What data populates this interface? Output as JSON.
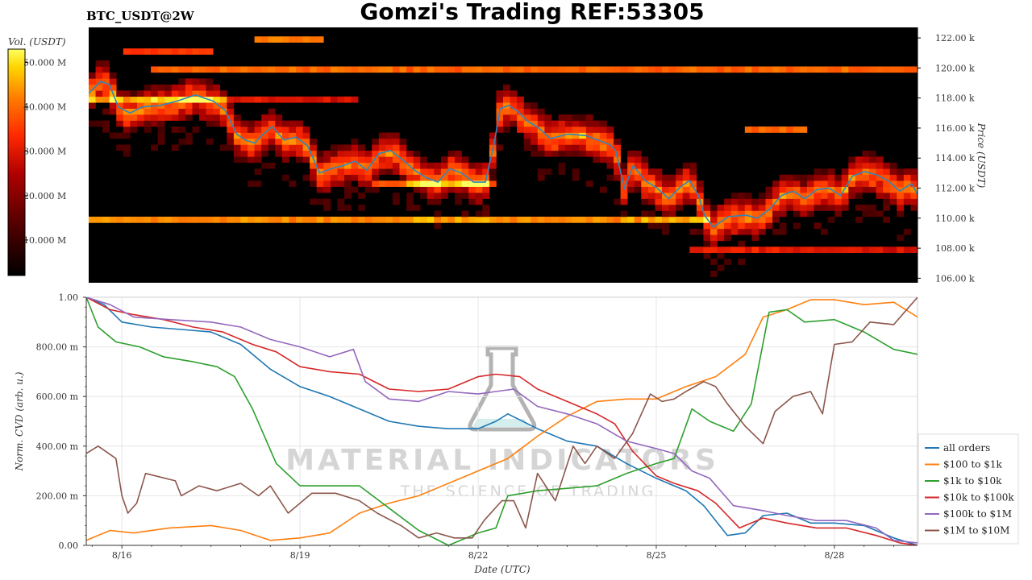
{
  "header": {
    "title": "Gomzi's Trading REF:53305",
    "subtitle": "BTC_USDT@2W"
  },
  "watermark": {
    "main": "MATERIAL INDICATORS",
    "sub": "THE SCIENCE OF TRADING"
  },
  "chart_data": [
    {
      "type": "heatmap",
      "colorbar": {
        "label": "Vol. (USDT)",
        "ticks": [
          "10.000 M",
          "20.000 M",
          "30.000 M",
          "40.000 M",
          "50.000 M"
        ],
        "tick_values": [
          10,
          20,
          30,
          40,
          50
        ],
        "range": [
          2,
          53
        ],
        "colorscale": [
          "#000000",
          "#5c0000",
          "#b00000",
          "#ff2a00",
          "#ff7a00",
          "#ffd400",
          "#ffff60"
        ]
      },
      "ylabel": "Price (USDT)",
      "ylim": [
        105700,
        122700
      ],
      "y_ticks": [
        "106.00 k",
        "108.00 k",
        "110.00 k",
        "112.00 k",
        "114.00 k",
        "116.00 k",
        "118.00 k",
        "120.00 k",
        "122.00 k"
      ],
      "y_tick_values": [
        106000,
        108000,
        110000,
        112000,
        114000,
        116000,
        118000,
        120000,
        122000
      ],
      "xlim_days": [
        15.4,
        29.4
      ],
      "price_line_color": "#2e86c1",
      "price_series": {
        "x": [
          15.4,
          15.6,
          15.75,
          15.9,
          16.1,
          16.3,
          16.6,
          16.9,
          17.2,
          17.5,
          17.7,
          17.9,
          18.05,
          18.2,
          18.35,
          18.5,
          18.7,
          18.9,
          19.1,
          19.3,
          19.5,
          19.7,
          19.9,
          20.1,
          20.3,
          20.5,
          20.7,
          20.9,
          21.1,
          21.3,
          21.5,
          21.7,
          21.9,
          22.1,
          22.25,
          22.35,
          22.5,
          22.65,
          22.8,
          23.0,
          23.2,
          23.5,
          23.8,
          24.0,
          24.2,
          24.3,
          24.45,
          24.6,
          24.8,
          25.0,
          25.2,
          25.4,
          25.55,
          25.7,
          25.8,
          25.95,
          26.2,
          26.5,
          26.7,
          26.9,
          27.1,
          27.3,
          27.5,
          27.7,
          27.9,
          28.1,
          28.3,
          28.5,
          28.7,
          28.9,
          29.1,
          29.3,
          29.4
        ],
        "y": [
          118300,
          119100,
          118900,
          117400,
          117000,
          117400,
          117500,
          117800,
          118200,
          117800,
          117200,
          115600,
          115200,
          115000,
          115600,
          116100,
          115200,
          115400,
          114800,
          113000,
          113300,
          113500,
          113800,
          113200,
          114300,
          114500,
          113900,
          113200,
          112700,
          112400,
          113300,
          113000,
          112400,
          112400,
          115000,
          117300,
          117500,
          117100,
          116500,
          116000,
          115300,
          115600,
          115500,
          115200,
          114900,
          114500,
          112000,
          113500,
          112500,
          112000,
          111300,
          112100,
          112500,
          111500,
          110200,
          109400,
          110100,
          110200,
          110000,
          110600,
          111500,
          111800,
          111300,
          111900,
          112000,
          111500,
          112800,
          113100,
          112900,
          112500,
          111800,
          112300,
          111600
        ]
      }
    },
    {
      "type": "line",
      "xlabel": "Date (UTC)",
      "ylabel": "Norm. CVD (arb. u.)",
      "ylim": [
        0,
        1
      ],
      "xlim_days": [
        15.4,
        29.4
      ],
      "x_ticks": [
        "8/16",
        "8/19",
        "8/22",
        "8/25",
        "8/28"
      ],
      "x_tick_values": [
        16,
        19,
        22,
        25,
        28
      ],
      "y_ticks": [
        "0.00",
        "200.00 m",
        "400.00 m",
        "600.00 m",
        "800.00 m",
        "1.00"
      ],
      "y_tick_values": [
        0,
        0.2,
        0.4,
        0.6,
        0.8,
        1.0
      ],
      "grid": true,
      "legend_position": "right",
      "series": [
        {
          "name": "all orders",
          "color": "#1f77b4",
          "x": [
            15.4,
            15.7,
            16.0,
            16.5,
            17.0,
            17.5,
            18.0,
            18.5,
            19.0,
            19.5,
            20.0,
            20.5,
            21.0,
            21.5,
            22.0,
            22.3,
            22.5,
            23.0,
            23.5,
            24.0,
            24.5,
            25.0,
            25.5,
            25.8,
            26.2,
            26.5,
            26.8,
            27.2,
            27.6,
            28.0,
            28.5,
            29.0,
            29.4
          ],
          "y": [
            1.0,
            0.97,
            0.9,
            0.88,
            0.87,
            0.86,
            0.81,
            0.71,
            0.64,
            0.6,
            0.55,
            0.5,
            0.48,
            0.47,
            0.47,
            0.5,
            0.53,
            0.47,
            0.42,
            0.4,
            0.33,
            0.27,
            0.22,
            0.16,
            0.04,
            0.05,
            0.12,
            0.13,
            0.09,
            0.09,
            0.08,
            0.03,
            0.0
          ]
        },
        {
          "name": "$100 to $1k",
          "color": "#ff7f0e",
          "x": [
            15.4,
            15.8,
            16.2,
            16.8,
            17.5,
            18.0,
            18.5,
            19.0,
            19.5,
            20.0,
            20.5,
            21.0,
            21.5,
            22.0,
            22.5,
            23.0,
            23.5,
            24.0,
            24.5,
            25.0,
            25.5,
            26.0,
            26.5,
            26.8,
            27.2,
            27.6,
            28.0,
            28.5,
            29.0,
            29.4
          ],
          "y": [
            0.02,
            0.06,
            0.05,
            0.07,
            0.08,
            0.06,
            0.02,
            0.03,
            0.05,
            0.13,
            0.17,
            0.2,
            0.25,
            0.3,
            0.35,
            0.44,
            0.52,
            0.58,
            0.59,
            0.59,
            0.64,
            0.68,
            0.77,
            0.92,
            0.95,
            0.99,
            0.99,
            0.97,
            0.98,
            0.92
          ]
        },
        {
          "name": "$1k to $10k",
          "color": "#2ca02c",
          "x": [
            15.4,
            15.6,
            15.9,
            16.3,
            16.7,
            17.2,
            17.6,
            17.9,
            18.2,
            18.6,
            19.0,
            19.5,
            20.0,
            20.5,
            21.0,
            21.5,
            22.0,
            22.3,
            22.5,
            23.0,
            23.5,
            24.0,
            24.5,
            25.0,
            25.3,
            25.6,
            25.9,
            26.3,
            26.6,
            26.9,
            27.2,
            27.5,
            28.0,
            28.5,
            29.0,
            29.4
          ],
          "y": [
            1.0,
            0.88,
            0.82,
            0.8,
            0.76,
            0.74,
            0.72,
            0.68,
            0.55,
            0.33,
            0.24,
            0.24,
            0.24,
            0.15,
            0.06,
            0.0,
            0.05,
            0.07,
            0.2,
            0.22,
            0.23,
            0.24,
            0.29,
            0.33,
            0.35,
            0.55,
            0.5,
            0.46,
            0.57,
            0.94,
            0.95,
            0.9,
            0.91,
            0.86,
            0.79,
            0.77
          ]
        },
        {
          "name": "$10k to $100k",
          "color": "#d62728",
          "x": [
            15.4,
            15.8,
            16.2,
            16.7,
            17.2,
            17.7,
            18.2,
            18.6,
            19.0,
            19.5,
            20.0,
            20.5,
            21.0,
            21.5,
            22.0,
            22.3,
            22.7,
            23.0,
            23.5,
            24.0,
            24.3,
            24.6,
            25.0,
            25.3,
            25.7,
            26.0,
            26.4,
            26.8,
            27.2,
            27.7,
            28.2,
            28.7,
            29.1,
            29.4
          ],
          "y": [
            1.0,
            0.95,
            0.93,
            0.91,
            0.88,
            0.86,
            0.81,
            0.78,
            0.72,
            0.7,
            0.69,
            0.63,
            0.62,
            0.63,
            0.68,
            0.69,
            0.68,
            0.63,
            0.58,
            0.53,
            0.49,
            0.38,
            0.28,
            0.25,
            0.22,
            0.17,
            0.07,
            0.11,
            0.09,
            0.07,
            0.07,
            0.04,
            0.01,
            0.0
          ]
        },
        {
          "name": "$100k to $1M",
          "color": "#9467bd",
          "x": [
            15.4,
            15.8,
            16.2,
            16.8,
            17.5,
            18.0,
            18.5,
            19.0,
            19.5,
            19.9,
            20.1,
            20.5,
            21.0,
            21.5,
            22.0,
            22.3,
            22.6,
            23.0,
            23.5,
            24.0,
            24.5,
            25.0,
            25.3,
            25.6,
            25.9,
            26.3,
            26.8,
            27.2,
            27.7,
            28.2,
            28.7,
            29.0,
            29.4
          ],
          "y": [
            1.0,
            0.97,
            0.92,
            0.91,
            0.9,
            0.88,
            0.83,
            0.8,
            0.76,
            0.79,
            0.66,
            0.59,
            0.58,
            0.62,
            0.61,
            0.62,
            0.63,
            0.56,
            0.53,
            0.49,
            0.42,
            0.39,
            0.37,
            0.3,
            0.27,
            0.16,
            0.14,
            0.12,
            0.1,
            0.1,
            0.07,
            0.02,
            0.01
          ]
        },
        {
          "name": "$1M to $10M",
          "color": "#8c564b",
          "x": [
            15.4,
            15.6,
            15.9,
            16.0,
            16.1,
            16.25,
            16.4,
            16.9,
            17.0,
            17.3,
            17.6,
            18.0,
            18.3,
            18.5,
            18.8,
            19.2,
            19.6,
            20.0,
            20.3,
            20.7,
            21.0,
            21.3,
            21.6,
            21.9,
            22.1,
            22.4,
            22.6,
            22.8,
            23.0,
            23.3,
            23.6,
            23.8,
            24.0,
            24.3,
            24.6,
            24.9,
            25.1,
            25.3,
            25.5,
            25.8,
            26.0,
            26.2,
            26.5,
            26.8,
            27.0,
            27.3,
            27.6,
            27.8,
            28.0,
            28.3,
            28.6,
            29.0,
            29.4
          ],
          "y": [
            0.37,
            0.4,
            0.35,
            0.2,
            0.13,
            0.17,
            0.29,
            0.26,
            0.2,
            0.24,
            0.22,
            0.25,
            0.2,
            0.24,
            0.13,
            0.21,
            0.21,
            0.18,
            0.13,
            0.08,
            0.03,
            0.05,
            0.03,
            0.03,
            0.1,
            0.18,
            0.18,
            0.07,
            0.29,
            0.18,
            0.4,
            0.33,
            0.4,
            0.35,
            0.45,
            0.61,
            0.58,
            0.59,
            0.62,
            0.66,
            0.64,
            0.57,
            0.48,
            0.41,
            0.54,
            0.6,
            0.62,
            0.53,
            0.81,
            0.82,
            0.9,
            0.89,
            1.0
          ]
        }
      ]
    }
  ]
}
